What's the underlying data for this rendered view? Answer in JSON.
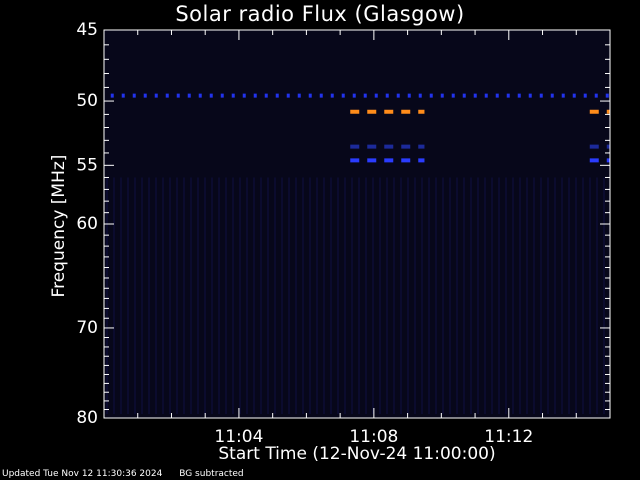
{
  "chart_data": {
    "type": "heatmap",
    "title": "Solar radio Flux (Glasgow)",
    "xlabel": "Start Time (12-Nov-24 11:00:00)",
    "ylabel": "Frequency [MHz]",
    "x_unit": "minutes",
    "xlim": [
      11.0,
      11.75
    ],
    "x_range_minutes": [
      0,
      15
    ],
    "x_ticks": [
      {
        "minute": 4,
        "label": "11:04"
      },
      {
        "minute": 8,
        "label": "11:08"
      },
      {
        "minute": 12,
        "label": "11:12"
      }
    ],
    "y_scale": "log",
    "ylim": [
      80,
      45
    ],
    "y_ticks": [
      45,
      50,
      55,
      60,
      70,
      80
    ],
    "background_color": "#07071a",
    "emission_lines": [
      {
        "freq_mhz": 49.6,
        "start_min": 0.2,
        "end_min": 15.0,
        "color": "#2233ee",
        "style": "dotted"
      },
      {
        "freq_mhz": 50.8,
        "start_min": 7.3,
        "end_min": 9.5,
        "color": "#ff8c1a",
        "style": "dashed"
      },
      {
        "freq_mhz": 50.8,
        "start_min": 14.4,
        "end_min": 15.0,
        "color": "#ff8c1a",
        "style": "dashed"
      },
      {
        "freq_mhz": 53.5,
        "start_min": 7.3,
        "end_min": 9.5,
        "color": "#1c2a9a",
        "style": "dashed"
      },
      {
        "freq_mhz": 53.5,
        "start_min": 14.4,
        "end_min": 15.0,
        "color": "#1c2a9a",
        "style": "dashed"
      },
      {
        "freq_mhz": 54.6,
        "start_min": 7.3,
        "end_min": 9.5,
        "color": "#2a3cff",
        "style": "dashed"
      },
      {
        "freq_mhz": 54.6,
        "start_min": 14.4,
        "end_min": 15.0,
        "color": "#2a3cff",
        "style": "dashed"
      }
    ],
    "grid": false
  },
  "footer": {
    "updated": "Updated Tue Nov 12 11:30:36 2024",
    "note": "BG subtracted"
  }
}
